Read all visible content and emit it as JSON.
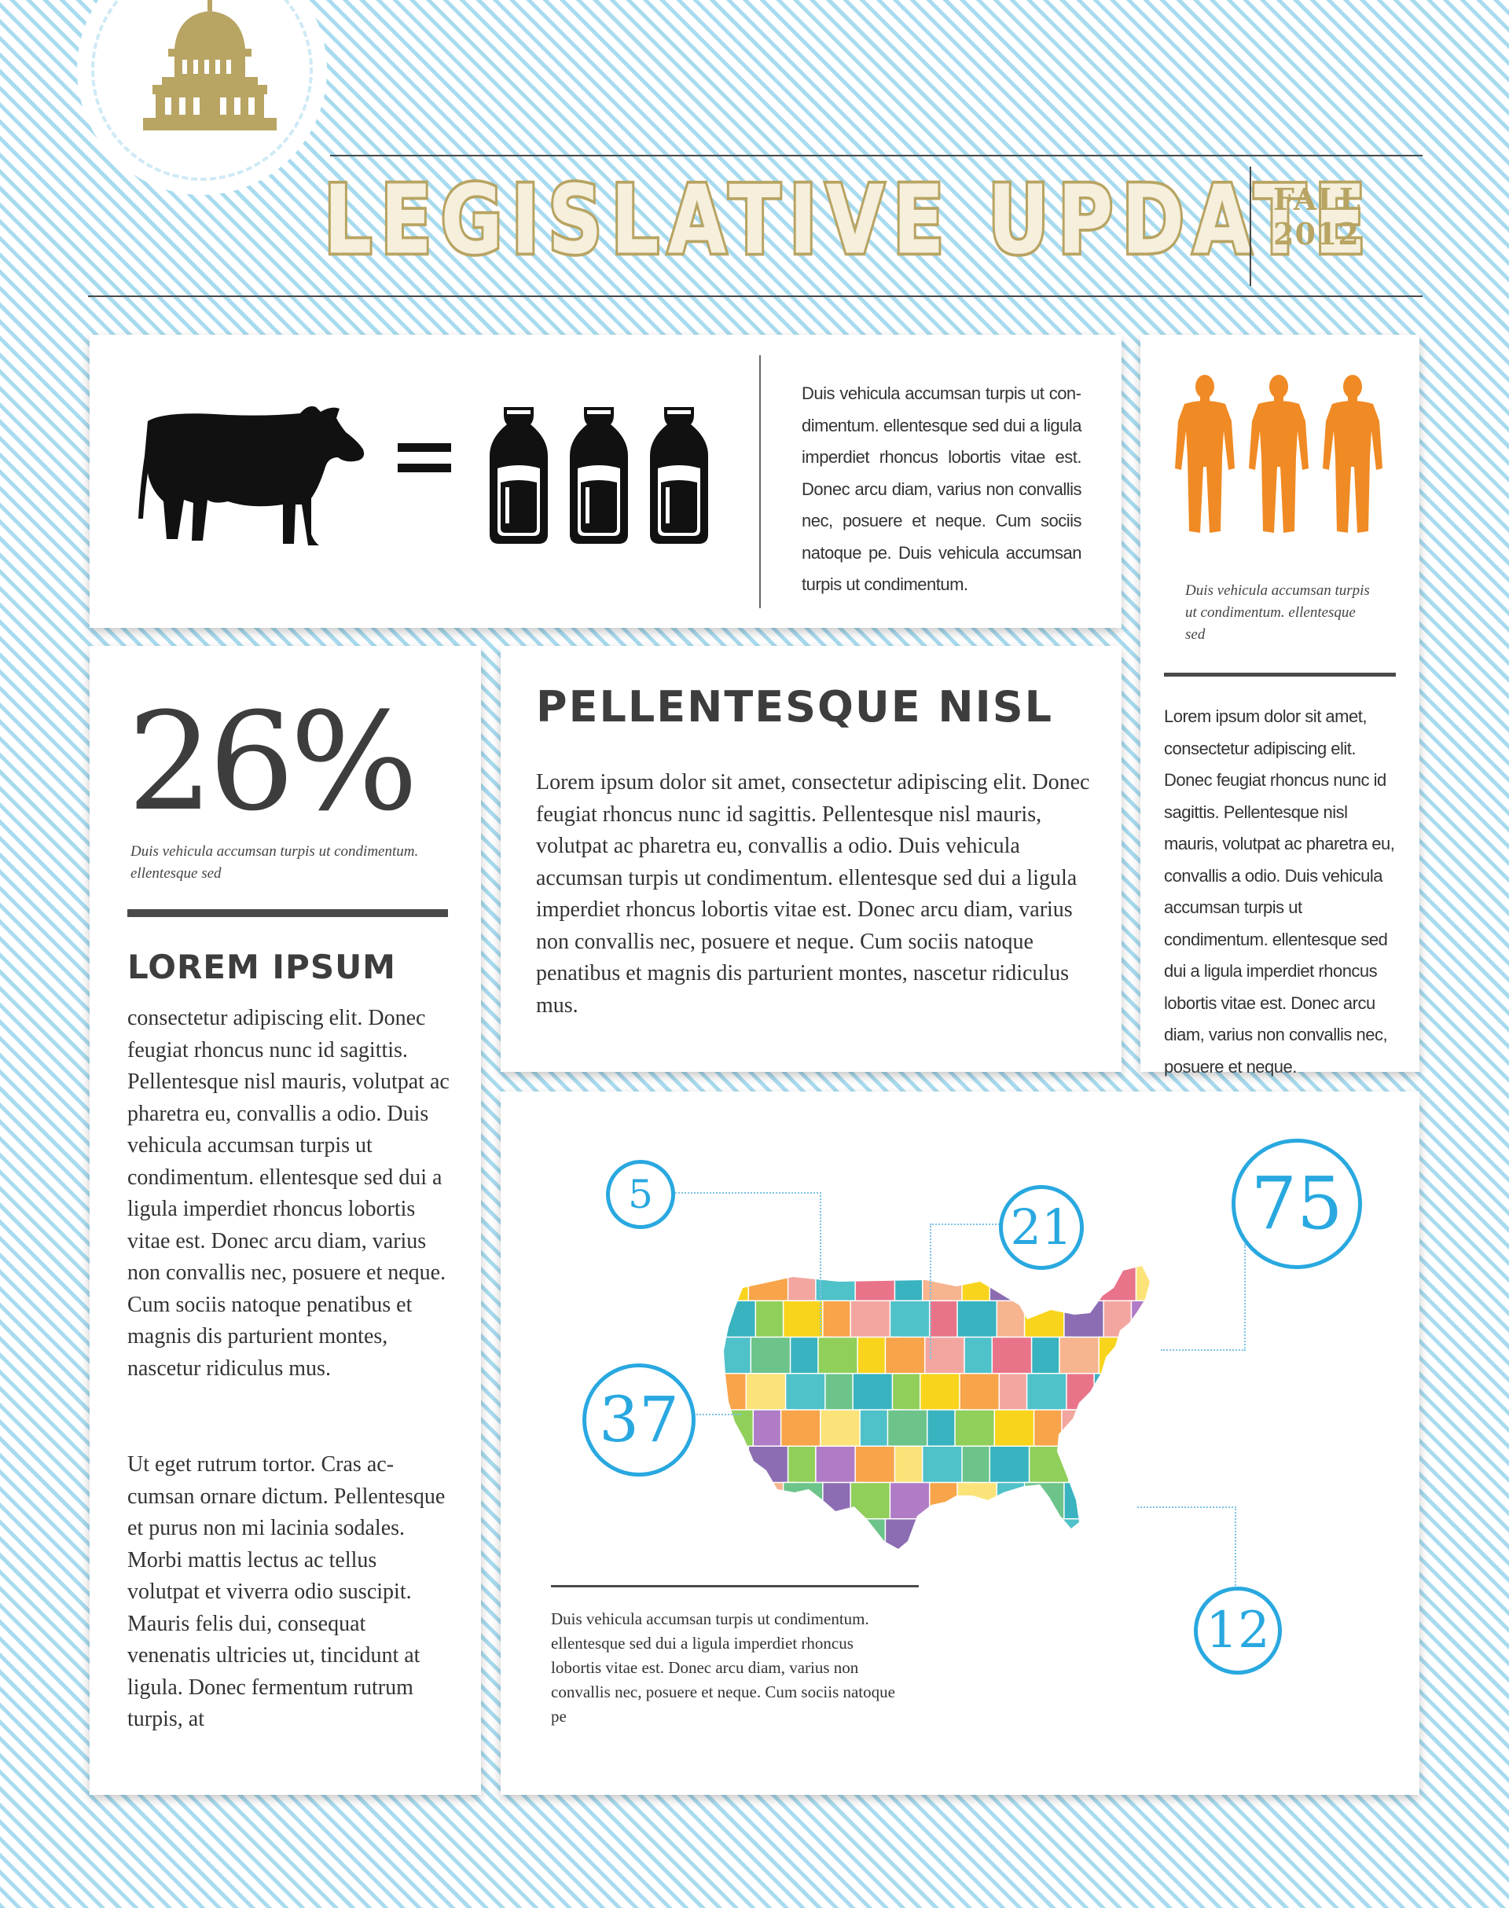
{
  "header": {
    "title": "LEGISLATIVE UPDATE",
    "season": "FALL",
    "year": "2012",
    "emblem_icon": "capitol-dome-icon",
    "gold_color": "#b8a463"
  },
  "cow_panel": {
    "cow_icon": "cow-icon",
    "equals_icon": "equals-icon",
    "milk_icon": "milk-bottle-icon",
    "milk_bottle_count": 3,
    "paragraph": "Duis vehicula accumsan turpis ut con­dimentum. ellentesque sed dui a ligula imperdiet rhoncus lobortis vitae est. Donec arcu diam, varius non convallis nec, posu­ere et neque. Cum sociis natoque pe. Duis vehicula accumsan turpis ut condimentum."
  },
  "people_panel": {
    "person_icon": "person-icon",
    "person_count": 3,
    "person_color": "#f08a24",
    "caption": "Duis vehicula accumsan turpis ut condimentum. el­lentesque sed",
    "paragraph": "Lorem ipsum dolor sit amet, consectetur adipiscing elit. Donec feugiat rhoncus nunc id sagittis. Pellentesque nisl mauris, volutpat ac pharetra eu, convallis a odio. Duis vehicula accumsan turpis ut condimentum. ellentesque sed dui a ligula imperdiet rhoncus lobortis vitae est. Donec arcu diam, varius non convallis nec, posuere et neque."
  },
  "stat_panel": {
    "percent": "26%",
    "caption": "Duis vehicula accumsan turpis ut condimen­tum. ellentesque sed",
    "heading": "LOREM IPSUM",
    "paragraph1": "consectetur adipiscing elit. Donec feugiat rhoncus nunc id sagittis. Pellentesque nisl mauris, volutpat ac pharetra eu, convallis a odio. Duis vehicula accumsan turpis ut condimen­tum. ellentesque sed dui a ligula imperdiet rhoncus lobortis vitae est. Donec arcu diam, varius non convallis nec, posuere et neque. Cum sociis natoque pe­natibus et magnis dis parturient montes, nascetur ridiculus mus.",
    "paragraph2": "Ut eget rutrum tortor. Cras ac­cumsan ornare dictum. Pellen­tesque et purus non mi lacinia sodales. Morbi mattis lectus ac tellus volutpat et viverra odio suscipit. Mauris felis dui, consequat venenatis ultricies ut, tincidunt at ligula. Donec fermentum rutrum turpis, at"
  },
  "article_panel": {
    "heading": "PELLENTESQUE NISL",
    "paragraph": "Lorem ipsum dolor sit amet, consectetur adipiscing elit. Donec feugiat rhoncus nunc id sagittis. Pellentesque nisl mauris, volutpat ac pharetra eu, convallis a odio. Duis vehicula accumsan turpis ut condimentum. ellentesque sed dui a ligula imperdiet rhoncus lobortis vitae est. Donec arcu diam, varius non convallis nec, posuere et neque. Cum sociis natoque penatibus et magnis dis parturient montes, nascetur ridiculus mus."
  },
  "map_panel": {
    "map_icon": "us-states-map",
    "badge_color": "#29a8e0",
    "badges": [
      "5",
      "21",
      "75",
      "37",
      "12"
    ],
    "caption": "Duis vehicula accumsan turpis ut condimen­tum. ellentesque sed dui a ligula imperdiet rhoncus lobortis vitae est. Donec arcu diam, varius non convallis nec, posuere et neque. Cum sociis natoque pe"
  }
}
